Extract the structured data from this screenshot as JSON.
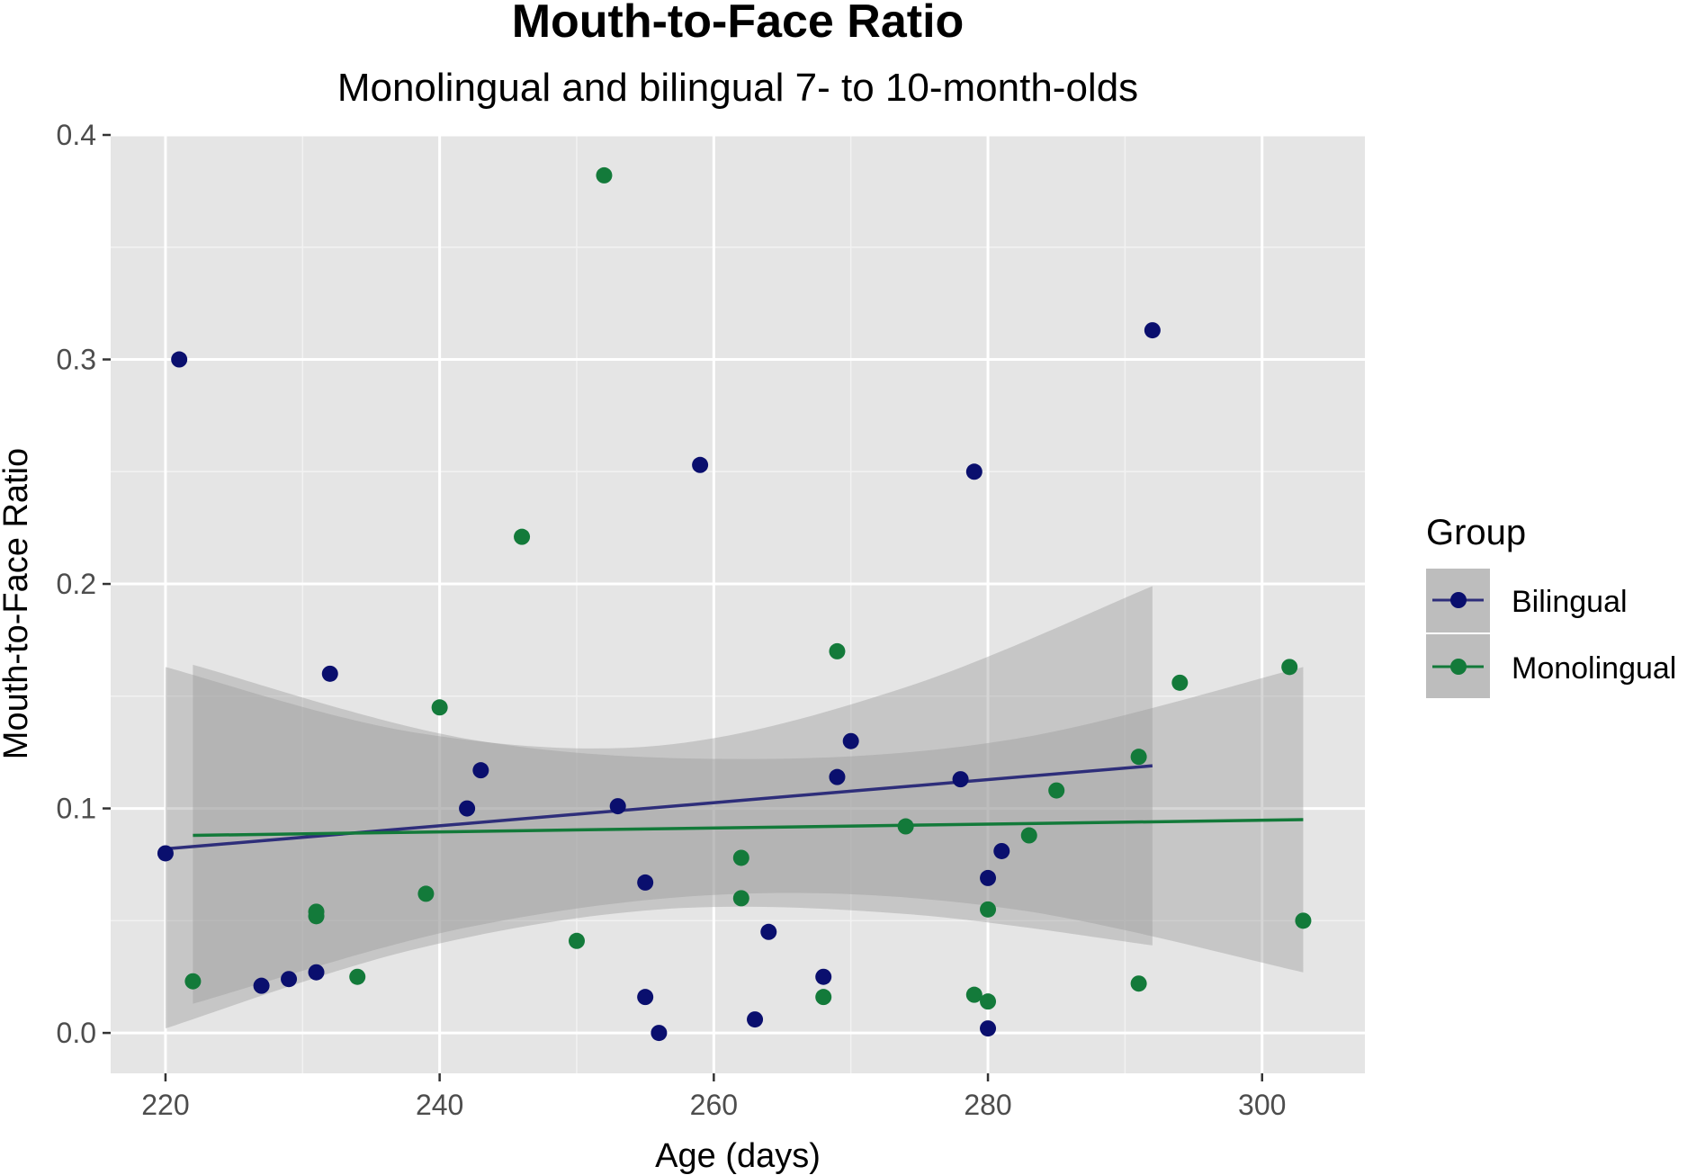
{
  "chart_data": {
    "type": "scatter",
    "title": "Mouth-to-Face Ratio",
    "subtitle": "Monolingual and bilingual 7- to 10-month-olds",
    "xlabel": "Age (days)",
    "ylabel": "Mouth-to-Face Ratio",
    "xlim": [
      216,
      307.5
    ],
    "ylim": [
      -0.018,
      0.4
    ],
    "x_ticks": [
      220,
      240,
      260,
      280,
      300
    ],
    "x_tick_labels": [
      "220",
      "240",
      "260",
      "280",
      "300"
    ],
    "y_ticks": [
      0.0,
      0.1,
      0.2,
      0.3,
      0.4
    ],
    "y_tick_labels": [
      "0.0",
      "0.1",
      "0.2",
      "0.3",
      "0.4"
    ],
    "grid": true,
    "legend": {
      "title": "Group",
      "placement": "right"
    },
    "series": [
      {
        "name": "Bilingual",
        "color": "#0a0f6e",
        "line_color": "#2e2e7a",
        "points": [
          [
            220,
            0.08
          ],
          [
            221,
            0.3
          ],
          [
            227,
            0.021
          ],
          [
            229,
            0.024
          ],
          [
            231,
            0.027
          ],
          [
            232,
            0.16
          ],
          [
            242,
            0.1
          ],
          [
            243,
            0.117
          ],
          [
            253,
            0.101
          ],
          [
            255,
            0.067
          ],
          [
            255,
            0.016
          ],
          [
            256,
            0.0
          ],
          [
            259,
            0.253
          ],
          [
            263,
            0.006
          ],
          [
            264,
            0.045
          ],
          [
            268,
            0.025
          ],
          [
            269,
            0.114
          ],
          [
            270,
            0.13
          ],
          [
            278,
            0.113
          ],
          [
            279,
            0.25
          ],
          [
            280,
            0.069
          ],
          [
            280,
            0.002
          ],
          [
            281,
            0.081
          ],
          [
            292,
            0.313
          ]
        ],
        "fit": {
          "x": [
            220,
            292
          ],
          "y": [
            0.082,
            0.119
          ]
        },
        "ci": {
          "x": [
            220,
            238,
            256,
            274,
            292
          ],
          "lower": [
            0.002,
            0.037,
            0.055,
            0.053,
            0.039
          ],
          "upper": [
            0.163,
            0.134,
            0.128,
            0.154,
            0.199
          ]
        }
      },
      {
        "name": "Monolingual",
        "color": "#137a3a",
        "line_color": "#137a3a",
        "points": [
          [
            222,
            0.023
          ],
          [
            231,
            0.054
          ],
          [
            231,
            0.052
          ],
          [
            234,
            0.025
          ],
          [
            239,
            0.062
          ],
          [
            240,
            0.145
          ],
          [
            246,
            0.221
          ],
          [
            250,
            0.041
          ],
          [
            252,
            0.382
          ],
          [
            262,
            0.078
          ],
          [
            262,
            0.06
          ],
          [
            268,
            0.016
          ],
          [
            269,
            0.17
          ],
          [
            274,
            0.092
          ],
          [
            279,
            0.017
          ],
          [
            280,
            0.055
          ],
          [
            280,
            0.014
          ],
          [
            283,
            0.088
          ],
          [
            285,
            0.108
          ],
          [
            291,
            0.123
          ],
          [
            291,
            0.022
          ],
          [
            294,
            0.156
          ],
          [
            302,
            0.163
          ],
          [
            303,
            0.05
          ]
        ],
        "fit": {
          "x": [
            222,
            303
          ],
          "y": [
            0.088,
            0.095
          ]
        },
        "ci": {
          "x": [
            222,
            242,
            262,
            282,
            303
          ],
          "lower": [
            0.013,
            0.047,
            0.062,
            0.055,
            0.027
          ],
          "upper": [
            0.164,
            0.131,
            0.122,
            0.131,
            0.163
          ]
        }
      }
    ]
  }
}
